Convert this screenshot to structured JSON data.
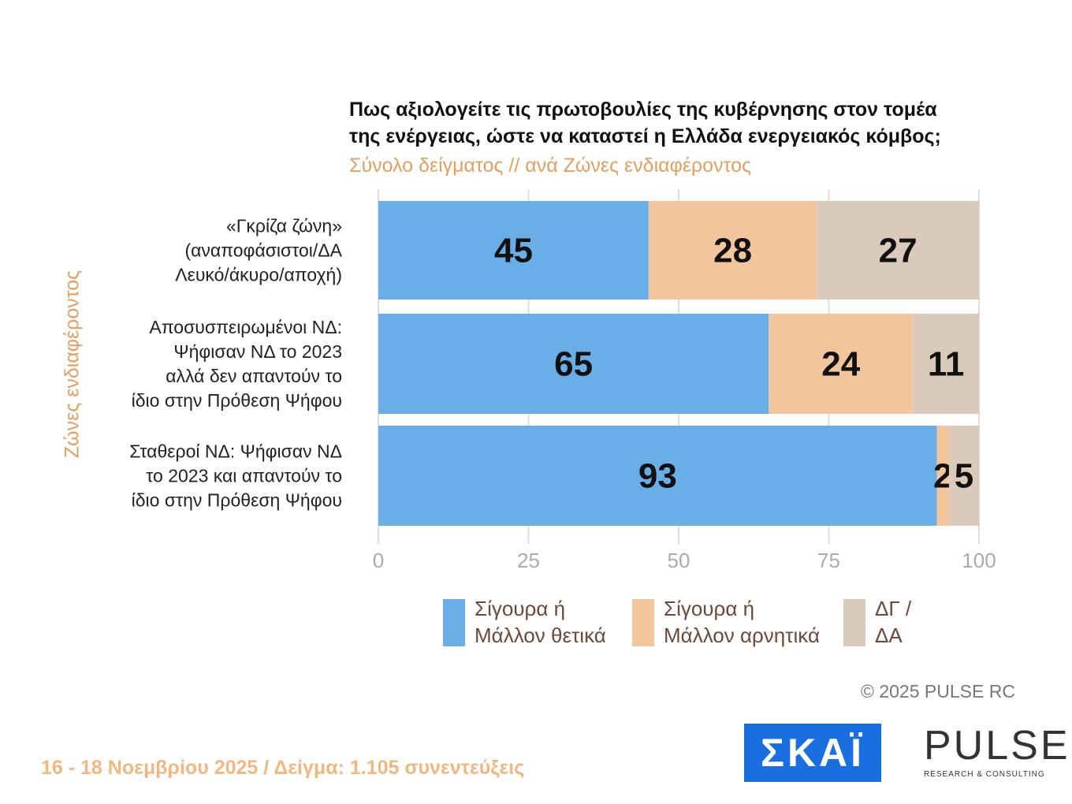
{
  "chart_data": {
    "type": "stacked-bar-horizontal",
    "title": "Πως αξιολογείτε τις πρωτοβουλίες της κυβέρνησης στον τομέα\nτης ενέργειας, ώστε να καταστεί η Ελλάδα ενεργειακός κόμβος;",
    "subtitle": "Σύνολο δείγματος // ανά Ζώνες ενδιαφέροντος",
    "y_label": "Ζώνες ενδιαφέροντος",
    "categories": [
      "«Γκρίζα ζώνη»\n(αναποφάσιστοι/ΔΑ\nΛευκό/άκυρο/αποχή)",
      "Αποσυσπειρωμένοι ΝΔ:\nΨήφισαν ΝΔ το 2023\nαλλά δεν απαντούν το\nίδιο στην Πρόθεση Ψήφου",
      "Σταθεροί ΝΔ: Ψήφισαν ΝΔ\nτο 2023 και απαντούν το\nίδιο στην Πρόθεση Ψήφου"
    ],
    "series": [
      {
        "name": "Σίγουρα ή\nΜάλλον θετικά",
        "color": "#6aaee8",
        "values": [
          45,
          65,
          93
        ]
      },
      {
        "name": "Σίγουρα ή\nΜάλλον αρνητικά",
        "color": "#f3c59d",
        "values": [
          28,
          24,
          2
        ]
      },
      {
        "name": "ΔΓ /\nΔΑ",
        "color": "#d9cab9",
        "values": [
          27,
          11,
          5
        ]
      }
    ],
    "xlim": [
      0,
      100
    ],
    "xticks": [
      0,
      25,
      50,
      75,
      100
    ],
    "grid": true
  },
  "footer": {
    "copyright": "©  2025  PULSE RC",
    "date_sample": "16 - 18 Νοεμβρίου 2025  /  Δείγμα:  1.105 συνεντεύξεις",
    "logo_skai": "ΣΚΑΪ",
    "logo_pulse": "PULSE",
    "logo_pulse_sub": "RESEARCH & CONSULTING"
  }
}
